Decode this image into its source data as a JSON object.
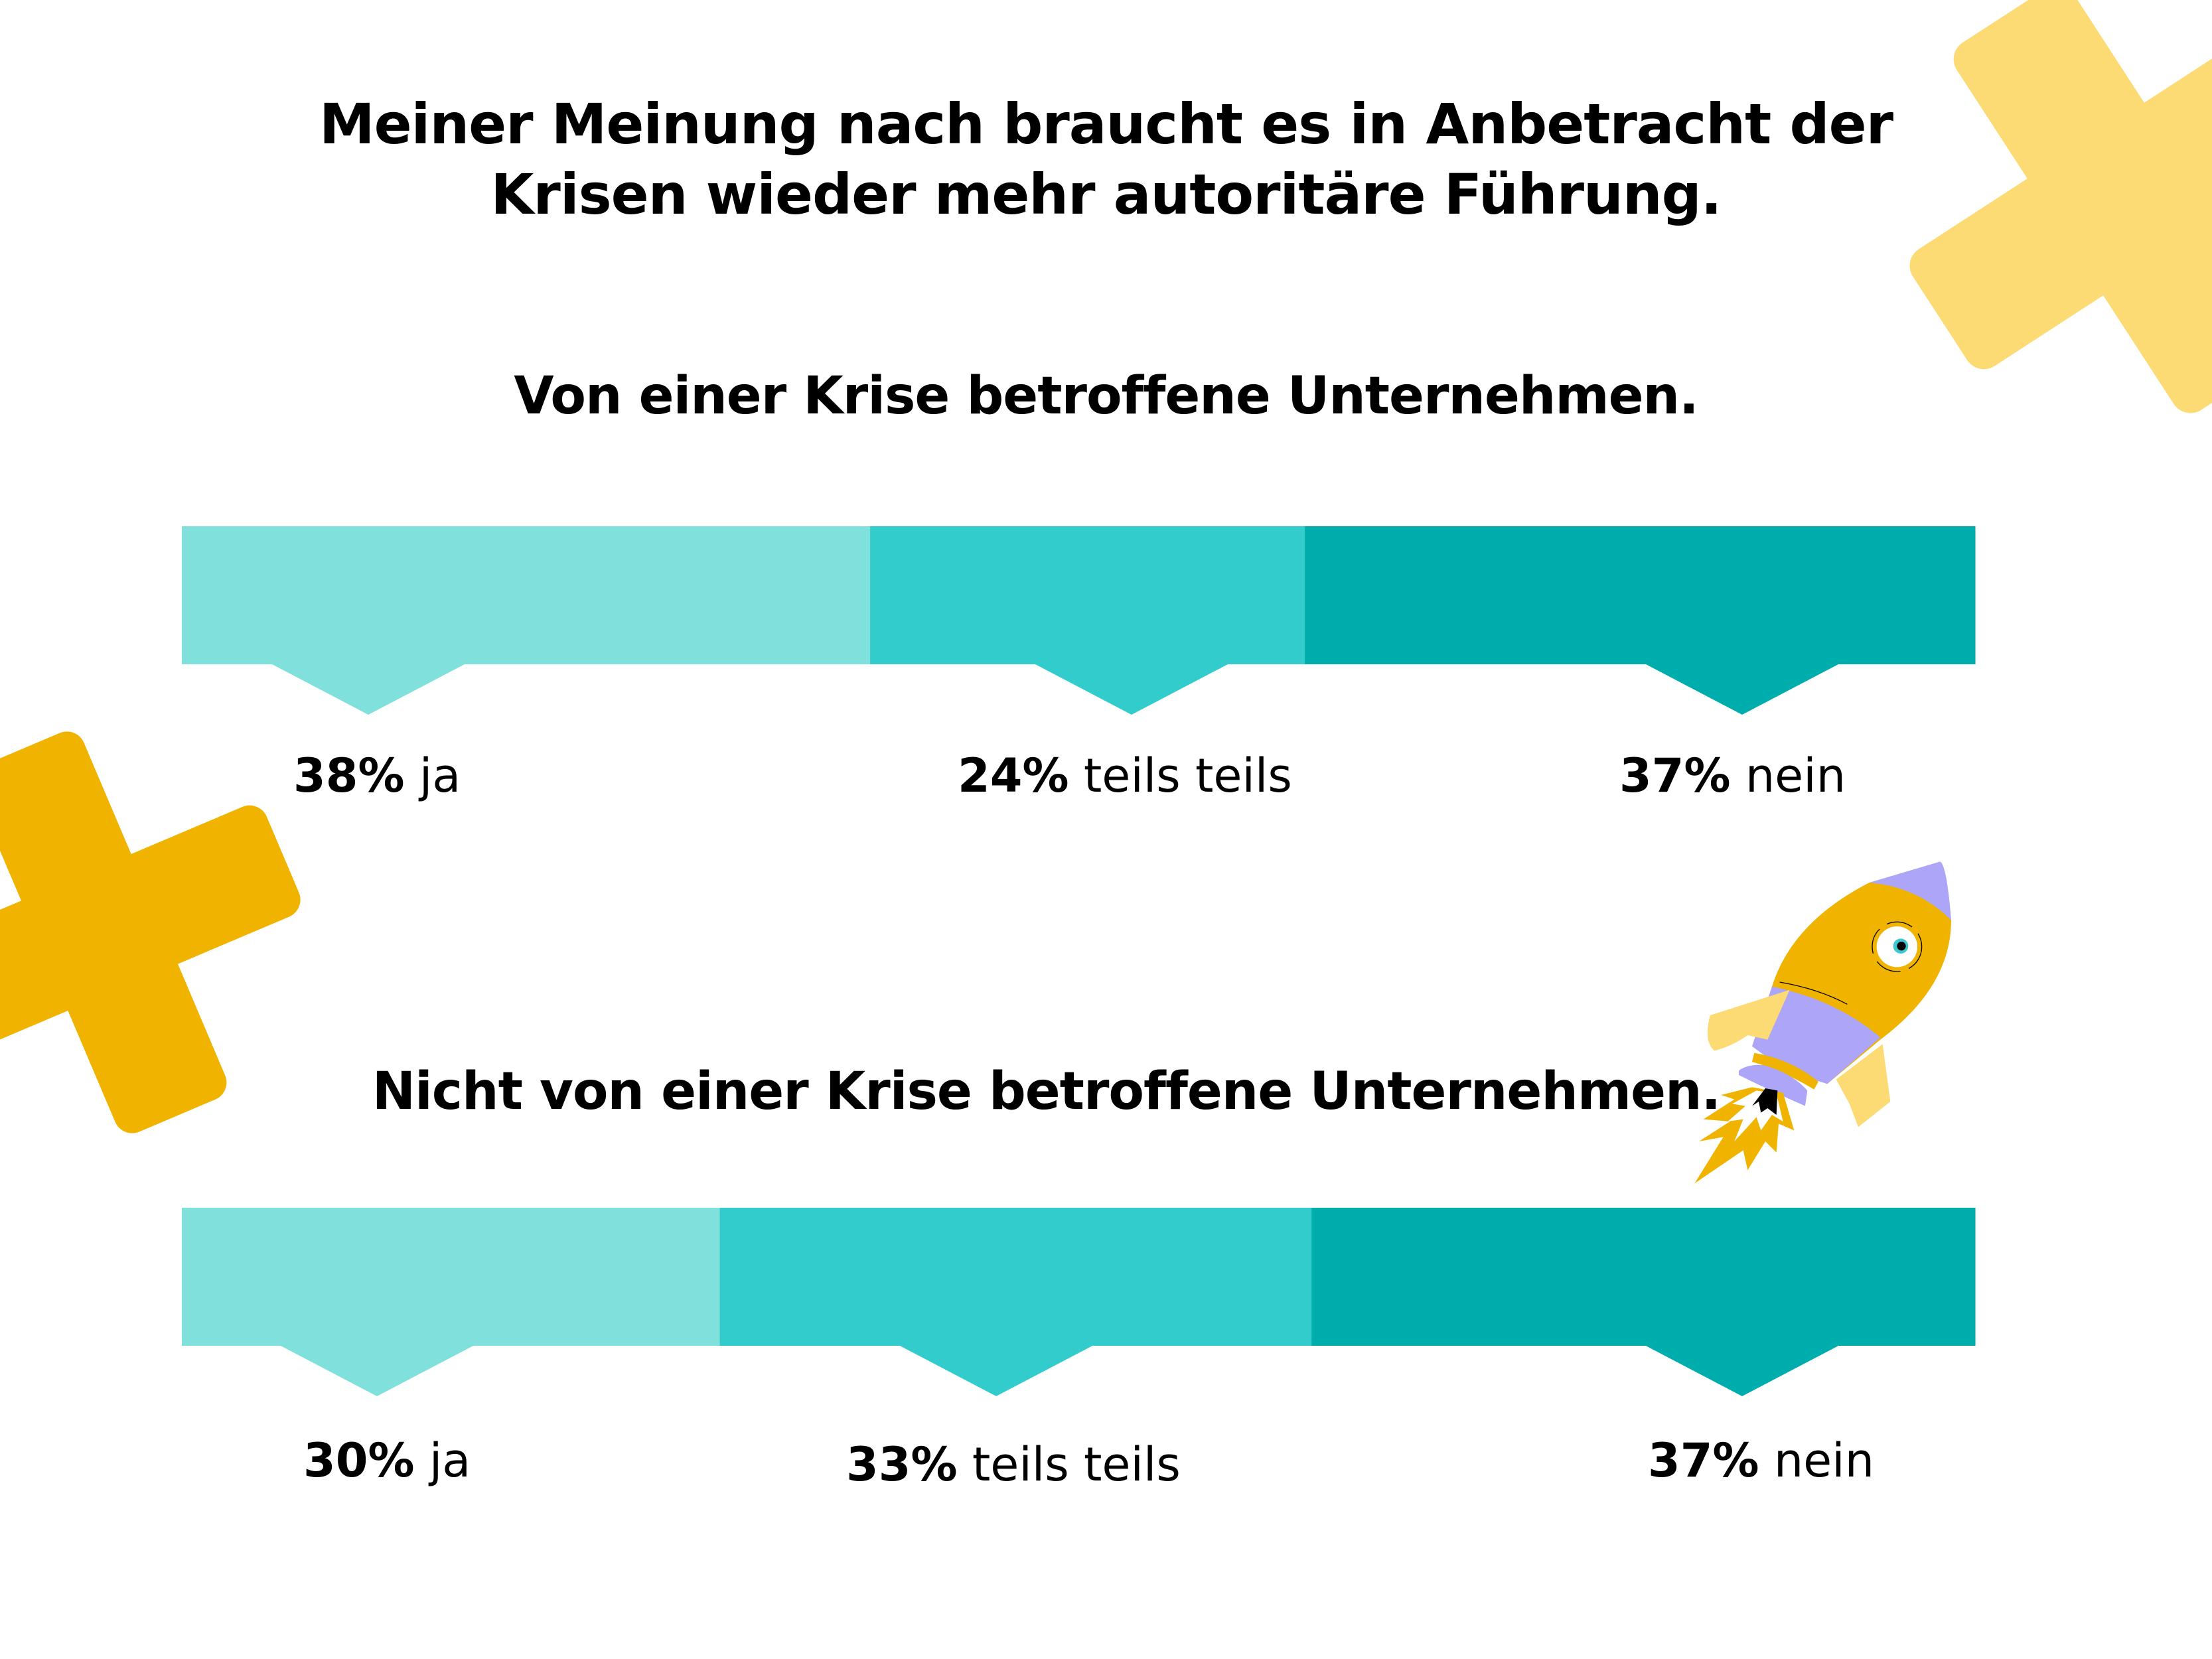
{
  "title_lines": [
    "Meiner Meinung nach braucht es in Anbetracht der",
    "Krisen wieder mehr autoritäre Führung."
  ],
  "colors": {
    "ja": "#80E0DB",
    "teils_teils": "#33CCCC",
    "nein": "#00ADAD",
    "cross_light": "#FDDB74",
    "cross_dark": "#F0B400",
    "rocket_body": "#F0B400",
    "rocket_purple": "#ADA5F8"
  },
  "chart_data": [
    {
      "type": "bar",
      "stacked": true,
      "orientation": "horizontal",
      "title": "Von einer Krise betroffene Unternehmen.",
      "categories": [
        "ja",
        "teils teils",
        "nein"
      ],
      "values": [
        38,
        24,
        37
      ],
      "labels": [
        {
          "value": "38%",
          "text": "ja"
        },
        {
          "value": "24%",
          "text": "teils teils"
        },
        {
          "value": "37%",
          "text": "nein"
        }
      ]
    },
    {
      "type": "bar",
      "stacked": true,
      "orientation": "horizontal",
      "title": "Nicht von einer Krise betroffene Unternehmen.",
      "categories": [
        "ja",
        "teils teils",
        "nein"
      ],
      "values": [
        30,
        33,
        37
      ],
      "labels": [
        {
          "value": "30%",
          "text": "ja"
        },
        {
          "value": "33%",
          "text": "teils teils"
        },
        {
          "value": "37%",
          "text": "nein"
        }
      ]
    }
  ],
  "decorations": [
    "cross-icon",
    "cross-icon",
    "rocket-icon"
  ]
}
